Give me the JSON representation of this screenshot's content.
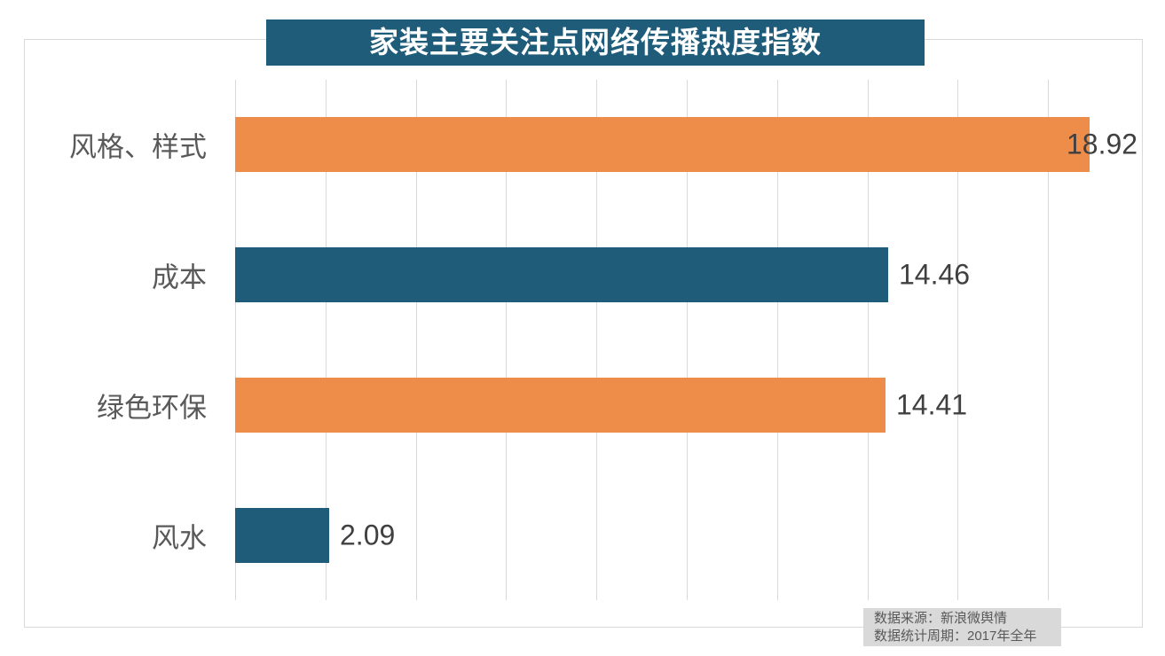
{
  "title": "家装主要关注点网络传播热度指数",
  "chart_data": {
    "type": "bar",
    "orientation": "horizontal",
    "title": "家装主要关注点网络传播热度指数",
    "categories": [
      "风格、样式",
      "成本",
      "绿色环保",
      "风水"
    ],
    "values": [
      18.92,
      14.46,
      14.41,
      2.09
    ],
    "value_labels": [
      "18.92",
      "14.46",
      "14.41",
      "2.09"
    ],
    "bar_colors": [
      "#EE8D49",
      "#1F5C7A",
      "#EE8D49",
      "#1F5C7A"
    ],
    "xlabel": "",
    "ylabel": "",
    "xlim": [
      0,
      20
    ],
    "gridline_step": 2,
    "gridline_count": 10,
    "grid": "vertical-only",
    "axis_tick_labels_visible": false,
    "legend": "none",
    "data_label_position": "outside-end"
  },
  "colors": {
    "background": "#FFFFFF",
    "orange": "#EE8D49",
    "teal": "#1F5C7A",
    "title_bg": "#1F5C7A",
    "title_text": "#FFFFFF",
    "gridline": "#D9D9D9",
    "frame_border": "#D9D9D9",
    "category_label": "#595959",
    "value_label": "#404040",
    "footer_bg": "#D9D9D9",
    "footer_text": "#595959"
  },
  "footer": {
    "lines": [
      "数据来源：新浪微舆情",
      "数据统计周期：2017年全年"
    ]
  }
}
